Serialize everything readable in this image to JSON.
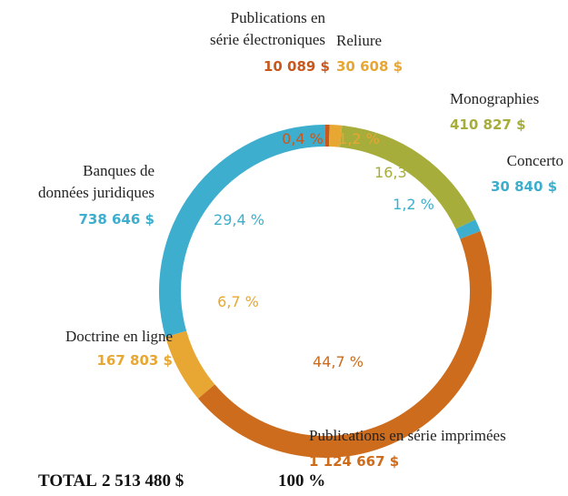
{
  "chart_data": {
    "type": "donut",
    "categories": [
      "Publications en\nsérie électroniques",
      "Reliure",
      "Monographies",
      "Concerto",
      "Publications en série imprimées",
      "Doctrine en ligne",
      "Banques de\ndonnées juridiques"
    ],
    "values": [
      0.4,
      1.2,
      16.3,
      1.2,
      44.7,
      6.7,
      29.4
    ],
    "value_labels": [
      "0,4 %",
      "1,2 %",
      "16,3 %",
      "1,2 %",
      "44,7 %",
      "6,7 %",
      "29,4 %"
    ],
    "amounts": [
      10089,
      30608,
      410827,
      30840,
      1124667,
      167803,
      738646
    ],
    "amount_labels": [
      "10 089 $",
      "30 608 $",
      "410 827 $",
      "30 840 $",
      "1 124 667 $",
      "167 803 $",
      "738 646 $"
    ],
    "colors": [
      "#c8581c",
      "#e8a733",
      "#a6ad3b",
      "#3daece",
      "#cd6c1d",
      "#e8a733",
      "#3daece"
    ],
    "total_label": "TOTAL",
    "total_amount_label": "2 513 480 $",
    "total_percent_label": "100 %"
  }
}
